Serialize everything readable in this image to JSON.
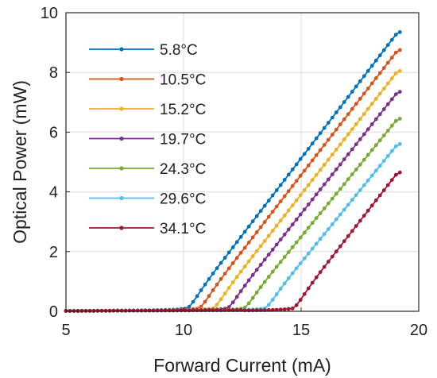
{
  "chart_data": {
    "type": "line",
    "title": "",
    "xlabel": "Forward Current (mA)",
    "ylabel": "Optical Power (mW)",
    "xlim": [
      5,
      20
    ],
    "ylim": [
      0,
      10
    ],
    "xticks": [
      "5",
      "10",
      "15",
      "20"
    ],
    "yticks": [
      "0",
      "2",
      "4",
      "6",
      "8",
      "10"
    ],
    "grid": true,
    "legend_position": "top-left",
    "marker": "dot",
    "series": [
      {
        "name": "5.8°C",
        "color": "#0072BD",
        "threshold": 10.1,
        "end": [
          19.2,
          9.35
        ]
      },
      {
        "name": "10.5°C",
        "color": "#D95319",
        "threshold": 10.6,
        "end": [
          19.2,
          8.75
        ]
      },
      {
        "name": "15.2°C",
        "color": "#EDB120",
        "threshold": 11.2,
        "end": [
          19.2,
          8.05
        ]
      },
      {
        "name": "19.7°C",
        "color": "#7E2F8E",
        "threshold": 11.8,
        "end": [
          19.2,
          7.35
        ]
      },
      {
        "name": "24.3°C",
        "color": "#77AC30",
        "threshold": 12.5,
        "end": [
          19.2,
          6.45
        ]
      },
      {
        "name": "29.6°C",
        "color": "#4DBEEE",
        "threshold": 13.4,
        "end": [
          19.2,
          5.6
        ]
      },
      {
        "name": "34.1°C",
        "color": "#A2142F",
        "threshold": 14.6,
        "end": [
          19.2,
          4.65
        ]
      }
    ]
  }
}
